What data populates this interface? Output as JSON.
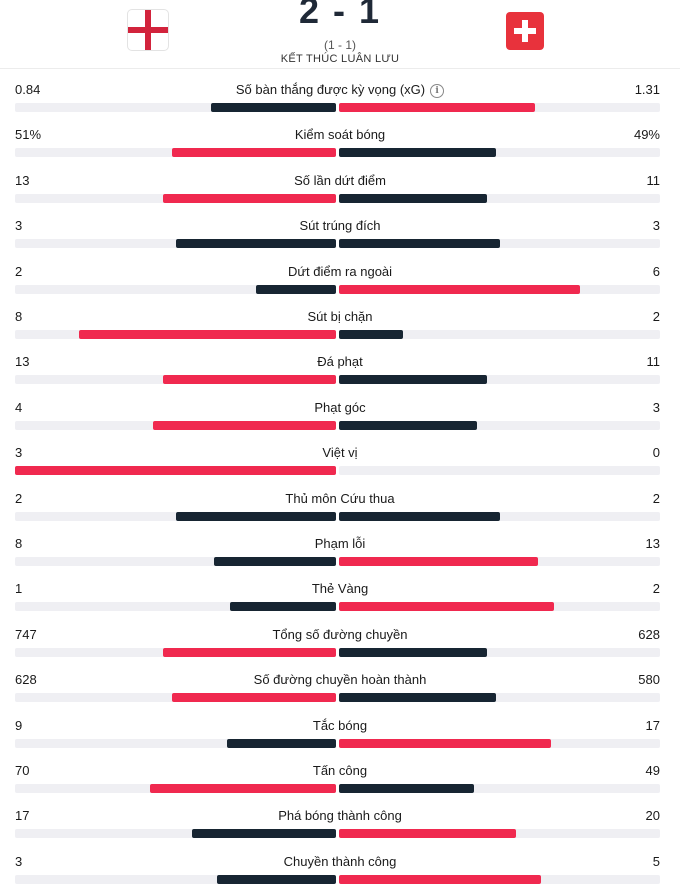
{
  "match": {
    "score": "2 - 1",
    "penalties": "(1 - 1)",
    "status": "KẾT THÚC LUÂN LƯU"
  },
  "colors": {
    "winner_bar": "#f0294f",
    "loser_bar": "#172532",
    "track": "#efeff3"
  },
  "stats": [
    {
      "label": "Số bàn thắng được kỳ vọng (xG)",
      "home": "0.84",
      "away": "1.31",
      "home_fill": 0.39,
      "away_fill": 0.61,
      "leader": "away",
      "info_icon": "info-icon"
    },
    {
      "label": "Kiểm soát bóng",
      "home": "51%",
      "away": "49%",
      "home_fill": 0.51,
      "away_fill": 0.49,
      "leader": "home"
    },
    {
      "label": "Số lần dứt điểm",
      "home": "13",
      "away": "11",
      "home_fill": 0.54,
      "away_fill": 0.46,
      "leader": "home"
    },
    {
      "label": "Sút trúng đích",
      "home": "3",
      "away": "3",
      "home_fill": 0.5,
      "away_fill": 0.5,
      "leader": "none"
    },
    {
      "label": "Dứt điểm ra ngoài",
      "home": "2",
      "away": "6",
      "home_fill": 0.25,
      "away_fill": 0.75,
      "leader": "away"
    },
    {
      "label": "Sút bị chặn",
      "home": "8",
      "away": "2",
      "home_fill": 0.8,
      "away_fill": 0.2,
      "leader": "home"
    },
    {
      "label": "Đá phạt",
      "home": "13",
      "away": "11",
      "home_fill": 0.54,
      "away_fill": 0.46,
      "leader": "home"
    },
    {
      "label": "Phạt góc",
      "home": "4",
      "away": "3",
      "home_fill": 0.57,
      "away_fill": 0.43,
      "leader": "home"
    },
    {
      "label": "Việt vị",
      "home": "3",
      "away": "0",
      "home_fill": 1.0,
      "away_fill": 0.0,
      "leader": "home"
    },
    {
      "label": "Thủ môn Cứu thua",
      "home": "2",
      "away": "2",
      "home_fill": 0.5,
      "away_fill": 0.5,
      "leader": "none"
    },
    {
      "label": "Phạm lỗi",
      "home": "8",
      "away": "13",
      "home_fill": 0.38,
      "away_fill": 0.62,
      "leader": "away"
    },
    {
      "label": "Thẻ Vàng",
      "home": "1",
      "away": "2",
      "home_fill": 0.33,
      "away_fill": 0.67,
      "leader": "away"
    },
    {
      "label": "Tổng số đường chuyền",
      "home": "747",
      "away": "628",
      "home_fill": 0.54,
      "away_fill": 0.46,
      "leader": "home"
    },
    {
      "label": "Số đường chuyền hoàn thành",
      "home": "628",
      "away": "580",
      "home_fill": 0.51,
      "away_fill": 0.49,
      "leader": "home"
    },
    {
      "label": "Tắc bóng",
      "home": "9",
      "away": "17",
      "home_fill": 0.34,
      "away_fill": 0.66,
      "leader": "away"
    },
    {
      "label": "Tấn công",
      "home": "70",
      "away": "49",
      "home_fill": 0.58,
      "away_fill": 0.42,
      "leader": "home"
    },
    {
      "label": "Phá bóng thành công",
      "home": "17",
      "away": "20",
      "home_fill": 0.45,
      "away_fill": 0.55,
      "leader": "away"
    },
    {
      "label": "Chuyền thành công",
      "home": "3",
      "away": "5",
      "home_fill": 0.37,
      "away_fill": 0.63,
      "leader": "away"
    }
  ]
}
